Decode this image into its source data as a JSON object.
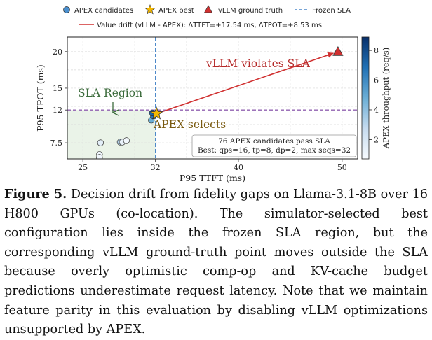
{
  "chart_data": {
    "type": "scatter",
    "title": "",
    "xlabel": "P95 TTFT (ms)",
    "ylabel": "P95 TPOT (ms)",
    "xlim": [
      23.5,
      51.5
    ],
    "ylim": [
      5.3,
      22
    ],
    "xticks": [
      25,
      32,
      40,
      50
    ],
    "yticks": [
      7.5,
      12,
      15,
      20
    ],
    "grid": true,
    "legend": {
      "placement": "top",
      "entries": [
        {
          "label": "APEX candidates",
          "marker": "circle"
        },
        {
          "label": "APEX best",
          "marker": "star"
        },
        {
          "label": "vLLM ground truth",
          "marker": "triangle"
        },
        {
          "label": "Frozen SLA",
          "marker": "dashed-line"
        },
        {
          "label": "Value drift (vLLM - APEX): ΔTTFT=+17.54 ms, ΔTPOT=+8.53 ms",
          "marker": "line"
        }
      ]
    },
    "sla": {
      "ttft": 32,
      "tpot": 12
    },
    "apex_candidates": [
      {
        "x": 26.7,
        "y": 7.5,
        "throughput": 1.5
      },
      {
        "x": 26.6,
        "y": 5.9,
        "throughput": 1.0
      },
      {
        "x": 26.6,
        "y": 5.5,
        "throughput": 1.0
      },
      {
        "x": 28.6,
        "y": 7.6,
        "throughput": 3.2
      },
      {
        "x": 28.8,
        "y": 7.6,
        "throughput": 1.3
      },
      {
        "x": 29.2,
        "y": 7.8,
        "throughput": 0.9
      },
      {
        "x": 31.6,
        "y": 10.6,
        "throughput": 4.8
      },
      {
        "x": 31.8,
        "y": 11.2,
        "throughput": 6.8
      },
      {
        "x": 31.7,
        "y": 11.6,
        "throughput": 7.2
      }
    ],
    "apex_best": {
      "x": 32.1,
      "y": 11.5
    },
    "vllm_ground_truth": {
      "x": 49.6,
      "y": 20.0
    },
    "drift": {
      "d_ttft": 17.54,
      "d_tpot": 8.53
    },
    "colorbar": {
      "label": "APEX throughput (req/s)",
      "min": 0.7,
      "max": 8.9,
      "ticks": [
        2,
        4,
        6,
        8
      ]
    },
    "colors": {
      "sla": "#4a86c8",
      "sla_h": "#9060b0",
      "vllm": "#d03030",
      "best": "#f5b800",
      "region": "#eaf3e8"
    },
    "annotations": {
      "sla_region": "SLA Region",
      "apex_selects": "APEX selects",
      "vllm_violates": "vLLM violates SLA",
      "summary_line1": "76 APEX candidates pass SLA",
      "summary_line2": "Best: qps=16, tp=8, dp=2, max seqs=32"
    }
  },
  "caption": {
    "label": "Figure 5.",
    "text": " Decision drift from fidelity gaps on Llama-3.1-8B over 16 H800 GPUs (co-location). The simulator-selected best configuration lies inside the frozen SLA region, but the corresponding vLLM ground-truth point moves outside the SLA because overly optimistic comp-op and KV-cache budget predictions underestimate request latency. Note that we maintain feature parity in this evaluation by disabling vLLM optimizations unsupported by APEX."
  }
}
